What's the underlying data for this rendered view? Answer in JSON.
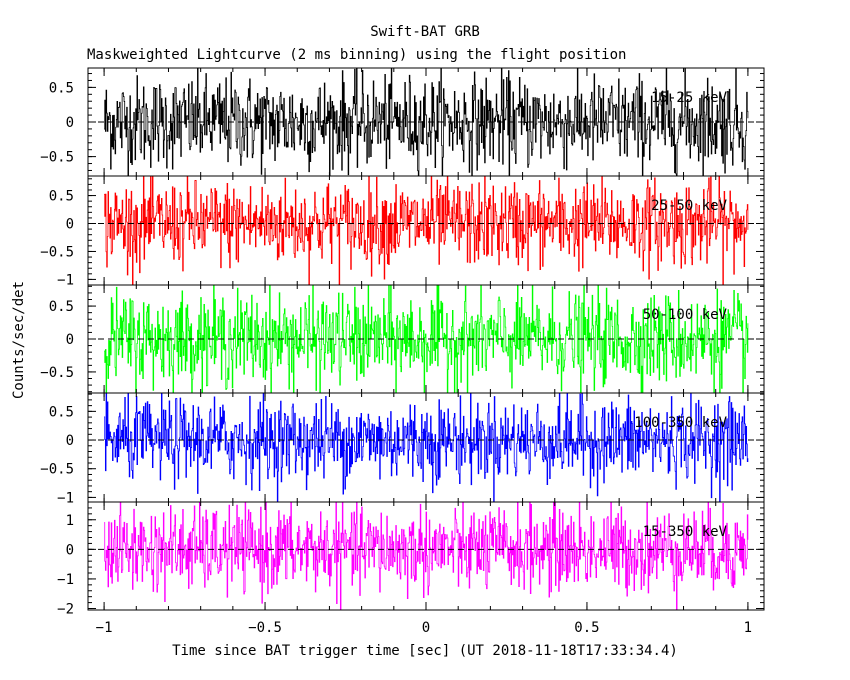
{
  "chart_data": {
    "type": "line",
    "title": "Swift-BAT GRB",
    "subtitle": "Maskweighted Lightcurve (2 ms binning) using the flight position",
    "xlabel": "Time since BAT trigger time [sec] (UT 2018-11-18T17:33:34.4)",
    "ylabel": "Counts/sec/det",
    "xlim": [
      -1.05,
      1.05
    ],
    "x_ticks": [
      -1,
      -0.5,
      0,
      0.5,
      1
    ],
    "x_tick_labels": [
      "−1",
      "−0.5",
      "0",
      "0.5",
      "1"
    ],
    "x_range": [
      -1.0,
      1.0
    ],
    "grid": false,
    "panels": [
      {
        "name": "15-25 keV",
        "color": "#000000",
        "ylim": [
          -0.78,
          0.78
        ],
        "y_ticks": [
          -0.5,
          0,
          0.5
        ],
        "y_tick_labels": [
          "−0.5",
          "0",
          "0.5"
        ],
        "amplitude": 0.33
      },
      {
        "name": "25-50 keV",
        "color": "#ff0000",
        "ylim": [
          -1.1,
          0.85
        ],
        "y_ticks": [
          -1,
          -0.5,
          0,
          0.5
        ],
        "y_tick_labels": [
          "−1",
          "−0.5",
          "0",
          "0.5"
        ],
        "amplitude": 0.38
      },
      {
        "name": "50-100 keV",
        "color": "#00ff00",
        "ylim": [
          -0.82,
          0.82
        ],
        "y_ticks": [
          -0.5,
          0,
          0.5
        ],
        "y_tick_labels": [
          "−0.5",
          "0",
          "0.5"
        ],
        "amplitude": 0.35
      },
      {
        "name": "100-350 keV",
        "color": "#0000ff",
        "ylim": [
          -1.08,
          0.82
        ],
        "y_ticks": [
          -1,
          -0.5,
          0,
          0.5
        ],
        "y_tick_labels": [
          "−1",
          "−0.5",
          "0",
          "0.5"
        ],
        "amplitude": 0.36
      },
      {
        "name": "15-350 keV",
        "color": "#ff00ff",
        "ylim": [
          -2.05,
          1.6
        ],
        "y_ticks": [
          -2,
          -1,
          0,
          1
        ],
        "y_tick_labels": [
          "−2",
          "−1",
          "0",
          "1"
        ],
        "amplitude": 0.72
      }
    ]
  }
}
